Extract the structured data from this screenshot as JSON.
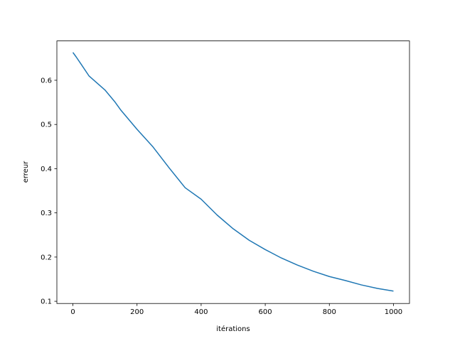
{
  "chart_data": {
    "type": "line",
    "xlabel": "itérations",
    "ylabel": "erreur",
    "x": [
      0,
      10,
      25,
      50,
      100,
      130,
      150,
      200,
      250,
      300,
      350,
      400,
      450,
      500,
      550,
      600,
      650,
      700,
      750,
      800,
      850,
      900,
      950,
      1000
    ],
    "series": [
      {
        "color": "#1f77b4",
        "values": [
          0.663,
          0.653,
          0.637,
          0.61,
          0.578,
          0.552,
          0.532,
          0.489,
          0.449,
          0.402,
          0.357,
          0.331,
          0.295,
          0.264,
          0.238,
          0.217,
          0.198,
          0.182,
          0.168,
          0.156,
          0.147,
          0.137,
          0.129,
          0.123
        ]
      }
    ],
    "xlim": [
      -50,
      1050
    ],
    "ylim": [
      0.095,
      0.689
    ],
    "xticks": [
      0,
      200,
      400,
      600,
      800,
      1000
    ],
    "yticks": [
      0.1,
      0.2,
      0.3,
      0.4,
      0.5,
      0.6
    ]
  }
}
